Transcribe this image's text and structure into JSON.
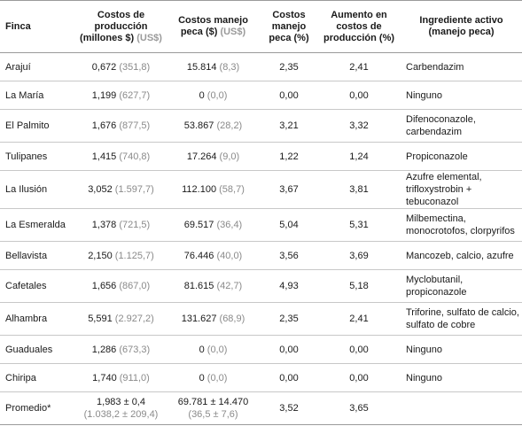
{
  "headers": {
    "finca": "Finca",
    "costos_prod": "Costos de producción (millones $)",
    "costos_prod_usd": "(US$)",
    "costos_manejo": "Costos manejo peca ($)",
    "costos_manejo_usd": "(US$)",
    "costos_pct": "Costos manejo peca (%)",
    "aumento": "Aumento en costos de producción (%)",
    "ingrediente": "Ingrediente activo (manejo peca)"
  },
  "rows": [
    {
      "finca": "Arajuí",
      "prod": "0,672",
      "prod_usd": "(351,8)",
      "manejo": "15.814",
      "manejo_usd": "(8,3)",
      "pct": "2,35",
      "aumento": "2,41",
      "ingrediente": "Carbendazim"
    },
    {
      "finca": "La María",
      "prod": "1,199",
      "prod_usd": "(627,7)",
      "manejo": "0",
      "manejo_usd": "(0,0)",
      "pct": "0,00",
      "aumento": "0,00",
      "ingrediente": "Ninguno"
    },
    {
      "finca": "El Palmito",
      "prod": "1,676",
      "prod_usd": "(877,5)",
      "manejo": "53.867",
      "manejo_usd": "(28,2)",
      "pct": "3,21",
      "aumento": "3,32",
      "ingrediente": "Difenoconazole, carbendazim"
    },
    {
      "finca": "Tulipanes",
      "prod": "1,415",
      "prod_usd": "(740,8)",
      "manejo": "17.264",
      "manejo_usd": "(9,0)",
      "pct": "1,22",
      "aumento": "1,24",
      "ingrediente": "Propiconazole"
    },
    {
      "finca": "La Ilusión",
      "prod": "3,052",
      "prod_usd": "(1.597,7)",
      "manejo": "112.100",
      "manejo_usd": "(58,7)",
      "pct": "3,67",
      "aumento": "3,81",
      "ingrediente": "Azufre elemental, trifloxystrobin + tebuconazol"
    },
    {
      "finca": "La Esmeralda",
      "prod": "1,378",
      "prod_usd": "(721,5)",
      "manejo": "69.517",
      "manejo_usd": "(36,4)",
      "pct": "5,04",
      "aumento": "5,31",
      "ingrediente": "Milbemectina, monocrotofos, clorpyrifos"
    },
    {
      "finca": "Bellavista",
      "prod": "2,150",
      "prod_usd": "(1.125,7)",
      "manejo": "76.446",
      "manejo_usd": "(40,0)",
      "pct": "3,56",
      "aumento": "3,69",
      "ingrediente": "Mancozeb, calcio, azufre"
    },
    {
      "finca": "Cafetales",
      "prod": "1,656",
      "prod_usd": "(867,0)",
      "manejo": "81.615",
      "manejo_usd": "(42,7)",
      "pct": "4,93",
      "aumento": "5,18",
      "ingrediente": "Myclobutanil, propiconazole"
    },
    {
      "finca": "Alhambra",
      "prod": "5,591",
      "prod_usd": "(2.927,2)",
      "manejo": "131.627",
      "manejo_usd": "(68,9)",
      "pct": "2,35",
      "aumento": "2,41",
      "ingrediente": "Triforine, sulfato de calcio, sulfato de cobre"
    },
    {
      "finca": "Guaduales",
      "prod": "1,286",
      "prod_usd": "(673,3)",
      "manejo": "0",
      "manejo_usd": "(0,0)",
      "pct": "0,00",
      "aumento": "0,00",
      "ingrediente": "Ninguno"
    },
    {
      "finca": "Chiripa",
      "prod": "1,740",
      "prod_usd": "(911,0)",
      "manejo": "0",
      "manejo_usd": "(0,0)",
      "pct": "0,00",
      "aumento": "0,00",
      "ingrediente": "Ninguno"
    }
  ],
  "promedio": {
    "finca": "Promedio*",
    "prod": "1,983 ± 0,4",
    "prod_usd": "(1.038,2 ± 209,4)",
    "manejo": "69.781 ± 14.470",
    "manejo_usd": "(36,5 ± 7,6)",
    "pct": "3,52",
    "aumento": "3,65",
    "ingrediente": ""
  }
}
